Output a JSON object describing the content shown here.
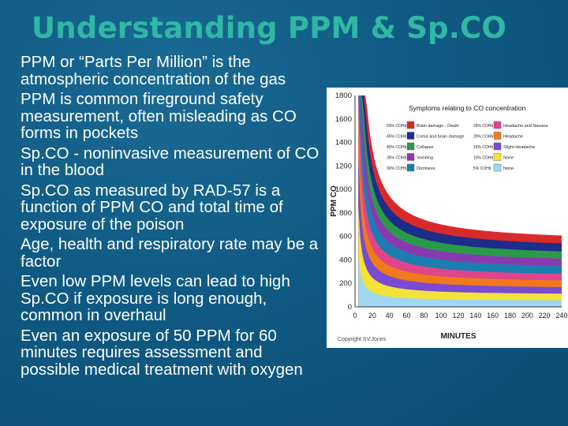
{
  "slide": {
    "title": "Understanding PPM & Sp.CO",
    "bullets": [
      "PPM or “Parts Per Million” is the atmospheric concentration of the gas",
      "PPM is common fireground safety measurement, often misleading as CO forms in pockets",
      "Sp.CO - noninvasive measurement of CO in the blood",
      "Sp.CO as measured by RAD-57 is a function of PPM CO and total time of exposure of the poison",
      "Age, health and respiratory rate may be a factor",
      "Even low PPM levels can lead to high Sp.CO if exposure is long enough, common in overhaul",
      "Even an exposure of 50 PPM for 60 minutes requires assessment and possible medical treatment with oxygen"
    ]
  },
  "colors": {
    "background": "#0f5a83",
    "title": "#2fb8a5",
    "text": "#ffffff"
  },
  "chart_data": {
    "type": "area",
    "title": "Symptoms relating to CO concentration",
    "xlabel": "MINUTES",
    "ylabel": "PPM CO",
    "xlim": [
      0,
      240
    ],
    "ylim": [
      0,
      1800
    ],
    "xticks": [
      0,
      20,
      40,
      60,
      80,
      100,
      120,
      140,
      160,
      180,
      200,
      220,
      240
    ],
    "yticks": [
      0,
      200,
      400,
      600,
      800,
      1000,
      1200,
      1400,
      1600,
      1800
    ],
    "copyright": "Copyright SV.Jones",
    "legend": [
      {
        "level": "50% COHb",
        "label": "Brain damage - Death",
        "color": "#d82a2a"
      },
      {
        "level": "45% COHb",
        "label": "Coma and brain damage",
        "color": "#1c2d8a"
      },
      {
        "level": "40% COHb",
        "label": "Collapse",
        "color": "#2a9a4a"
      },
      {
        "level": "35% COHb",
        "label": "Vomiting",
        "color": "#8a3ab0"
      },
      {
        "level": "30% COHb",
        "label": "Dizziness",
        "color": "#1a7fb0"
      },
      {
        "level": "25% COHb",
        "label": "Headache and Nausea",
        "color": "#e0458a"
      },
      {
        "level": "20% COHb",
        "label": "Headache",
        "color": "#f07a1a"
      },
      {
        "level": "15% COHb",
        "label": "Slight Headache",
        "color": "#7a4ad0"
      },
      {
        "level": "10% COHb",
        "label": "None",
        "color": "#f2e23a"
      },
      {
        "level": "5% COHb",
        "label": "None",
        "color": "#9ed8f0"
      }
    ],
    "series": [
      {
        "name": "50% COHb",
        "color": "#d82a2a",
        "asymptote_ppm": 540
      },
      {
        "name": "45% COHb",
        "color": "#1c2d8a",
        "asymptote_ppm": 480
      },
      {
        "name": "40% COHb",
        "color": "#2a9a4a",
        "asymptote_ppm": 420
      },
      {
        "name": "35% COHb",
        "color": "#8a3ab0",
        "asymptote_ppm": 365
      },
      {
        "name": "30% COHb",
        "color": "#1a7fb0",
        "asymptote_ppm": 310
      },
      {
        "name": "25% COHb",
        "color": "#e0458a",
        "asymptote_ppm": 250
      },
      {
        "name": "20% COHb",
        "color": "#f07a1a",
        "asymptote_ppm": 200
      },
      {
        "name": "15% COHb",
        "color": "#7a4ad0",
        "asymptote_ppm": 150
      },
      {
        "name": "10% COHb",
        "color": "#f2e23a",
        "asymptote_ppm": 100
      },
      {
        "name": "5% COHb",
        "color": "#9ed8f0",
        "asymptote_ppm": 50
      }
    ]
  }
}
